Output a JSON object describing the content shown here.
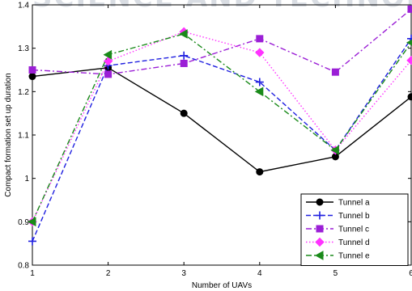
{
  "watermark": {
    "text": "SCIENCE AND TECHNOLOGY"
  },
  "chart_data": {
    "type": "line",
    "title": "",
    "xlabel": "Number of UAVs",
    "ylabel": "Compact formation set up duration",
    "x": [
      1,
      2,
      3,
      4,
      5,
      6
    ],
    "xlim": [
      1,
      6
    ],
    "ylim": [
      0.8,
      1.4
    ],
    "xticks": [
      "1",
      "2",
      "3",
      "4",
      "5",
      "6"
    ],
    "yticks": [
      "0.8",
      "0.9",
      "1",
      "1.1",
      "1.2",
      "1.3",
      "1.4"
    ],
    "grid": false,
    "legend_position": "bottom-right",
    "series": [
      {
        "name": "Tunnel a",
        "values": [
          1.235,
          1.255,
          1.15,
          1.015,
          1.05,
          1.188
        ],
        "color": "#000000",
        "dash": "solid",
        "marker": "circle"
      },
      {
        "name": "Tunnel b",
        "values": [
          0.855,
          1.26,
          1.283,
          1.222,
          1.065,
          1.322
        ],
        "color": "#1f1fe0",
        "dash": "dashed",
        "marker": "plus"
      },
      {
        "name": "Tunnel c",
        "values": [
          1.25,
          1.24,
          1.265,
          1.322,
          1.245,
          1.39
        ],
        "color": "#9b1fd6",
        "dash": "dashdot",
        "marker": "square"
      },
      {
        "name": "Tunnel d",
        "values": [
          0.9,
          1.27,
          1.338,
          1.29,
          1.065,
          1.272
        ],
        "color": "#ff33ff",
        "dash": "dotted",
        "marker": "diamond"
      },
      {
        "name": "Tunnel e",
        "values": [
          0.9,
          1.285,
          1.333,
          1.2,
          1.065,
          1.313
        ],
        "color": "#1a8a1a",
        "dash": "dashdot",
        "marker": "triangle-left"
      }
    ]
  }
}
